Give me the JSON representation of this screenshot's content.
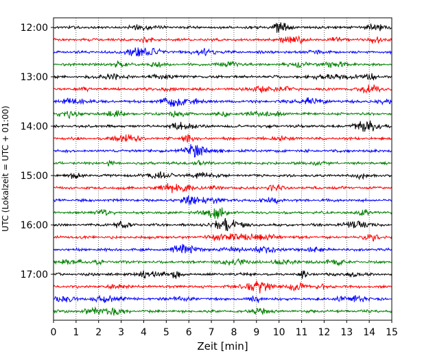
{
  "chart_data": {
    "type": "line",
    "title": "",
    "xlabel": "Zeit  [min]",
    "ylabel": "UTC (Lokalzeit = UTC + 01:00)",
    "xlim": [
      0,
      15
    ],
    "x_ticks": [
      "0",
      "1",
      "2",
      "3",
      "4",
      "5",
      "6",
      "7",
      "8",
      "9",
      "10",
      "11",
      "12",
      "13",
      "14",
      "15"
    ],
    "y_ticks": [
      "12:00",
      "13:00",
      "14:00",
      "15:00",
      "16:00",
      "17:00"
    ],
    "grid": "vertical dotted lines at each minute",
    "trace_colors": [
      "#000000",
      "#ff0000",
      "#0000ff",
      "#008000"
    ],
    "traces_per_hour": 4,
    "trace_start_times": [
      "12:00",
      "12:15",
      "12:30",
      "12:45",
      "13:00",
      "13:15",
      "13:30",
      "13:45",
      "14:00",
      "14:15",
      "14:30",
      "14:45",
      "15:00",
      "15:15",
      "15:30",
      "15:45",
      "16:00",
      "16:15",
      "16:30",
      "16:45",
      "17:00",
      "17:15",
      "17:30",
      "17:45"
    ]
  }
}
